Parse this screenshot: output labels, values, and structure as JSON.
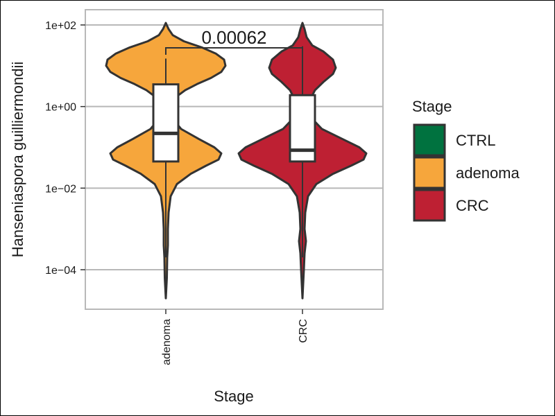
{
  "chart_data": {
    "type": "violin",
    "xlabel": "Stage",
    "ylabel": "Hanseniaspora guilliermondii",
    "y_scale": "log10",
    "ylim": [
      2e-05,
      200
    ],
    "y_ticks": [
      {
        "value": 100,
        "label": "1e+02"
      },
      {
        "value": 1,
        "label": "1e+00"
      },
      {
        "value": 0.01,
        "label": "1e−02"
      },
      {
        "value": 0.0001,
        "label": "1e−04"
      }
    ],
    "categories": [
      "adenoma",
      "CRC"
    ],
    "grid": true,
    "series": [
      {
        "category": "adenoma",
        "color": "#F6A63C",
        "violin_range": [
          2e-05,
          100
        ],
        "box": {
          "q1": 0.045,
          "median": 0.22,
          "q3": 3.5,
          "whisker_low": 0.0002,
          "whisker_high": 15
        }
      },
      {
        "category": "CRC",
        "color": "#BE2033",
        "violin_range": [
          2e-05,
          100
        ],
        "box": {
          "q1": 0.045,
          "median": 0.085,
          "q3": 1.9,
          "whisker_low": 0.0002,
          "whisker_high": 30
        }
      }
    ],
    "annotations": [
      {
        "type": "p-value bracket",
        "between": [
          "adenoma",
          "CRC"
        ],
        "label": "0.00062"
      }
    ],
    "legend": {
      "title": "Stage",
      "placement": "right",
      "entries": [
        {
          "label": "CTRL",
          "color": "#00723F"
        },
        {
          "label": "adenoma",
          "color": "#F6A63C"
        },
        {
          "label": "CRC",
          "color": "#BE2033"
        }
      ]
    }
  }
}
